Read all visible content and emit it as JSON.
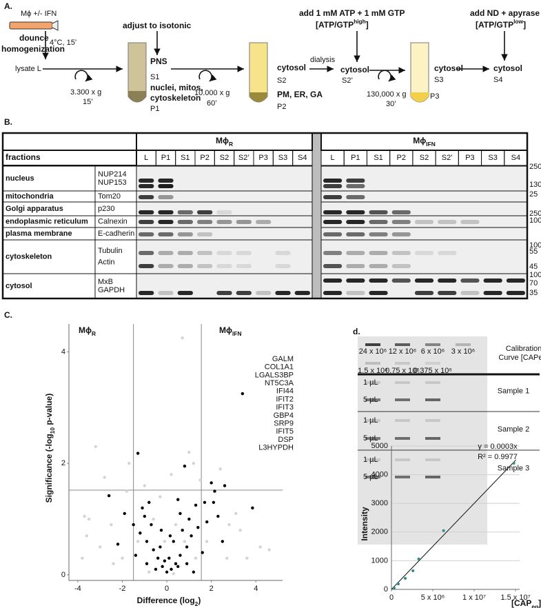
{
  "panel_a": {
    "label": "A.",
    "cells": "Mϕ  +/- IFN",
    "homogenization": [
      "dounce",
      "homogenization"
    ],
    "lysis_conditions": "4°C, 15’",
    "lysate": "lysate L",
    "step1": {
      "speed": "3.300 x g",
      "time": "15’"
    },
    "isotonic": "adjust to isotonic",
    "tube1": {
      "top_name": "PNS",
      "top": "S1",
      "bottom_name": [
        "nuclei, mitos,",
        "cytoskeleton"
      ],
      "bottom": "P1"
    },
    "step2": {
      "speed": "10.000 x g",
      "time": "60’"
    },
    "tube2": {
      "top_name": "cytosol",
      "top": "S2",
      "bottom_name": "PM, ER, GA",
      "bottom": "P2"
    },
    "atp_add": "add 1 mM ATP + 1 mM GTP",
    "atp_high": {
      "text": "[ATP/GTP",
      "sup": "high",
      "close": "]"
    },
    "dialysis": "dialysis",
    "s2p": {
      "name": "cytosol",
      "label": "S2’"
    },
    "step3": {
      "speed": "130,000 x g",
      "time": "30’"
    },
    "tube3": {
      "top_name": "cytosol",
      "top": "S3",
      "bottom": "P3"
    },
    "nd_add": "add ND + apyrase",
    "atp_low": {
      "text": "[ATP/GTP",
      "sup": "low",
      "close": "]"
    },
    "s4": {
      "name": "cytosol",
      "label": "S4"
    }
  },
  "panel_b": {
    "label": "B.",
    "header": "fractions",
    "groups": [
      {
        "name": "Mϕ",
        "sub": "R",
        "lanes": [
          "L",
          "P1",
          "S1",
          "P2",
          "S2",
          "S2’",
          "P3",
          "S3",
          "S4"
        ]
      },
      {
        "name": "Mϕ",
        "sub": "IFN",
        "lanes": [
          "L",
          "P1",
          "S1",
          "P2",
          "S2",
          "S2’",
          "P3",
          "S3",
          "S4"
        ]
      }
    ],
    "rows": [
      {
        "fraction": "nucleus",
        "markers": [
          "NUP214",
          "NUP153"
        ]
      },
      {
        "fraction": "mitochondria",
        "markers": [
          "Tom20"
        ]
      },
      {
        "fraction": "Golgi apparatus",
        "markers": [
          "p230"
        ]
      },
      {
        "fraction": "endoplasmic reticulum",
        "markers": [
          "Calnexin"
        ]
      },
      {
        "fraction": "plasma membrane",
        "markers": [
          "E-cadherin"
        ]
      },
      {
        "fraction": "cytoskeleton",
        "markers": [
          "Tubulin",
          "Actin"
        ]
      },
      {
        "fraction": "cytosol",
        "markers": [
          "MxB",
          "GAPDH"
        ]
      }
    ],
    "mw": [
      250,
      130,
      25,
      250,
      100,
      100,
      55,
      45,
      100,
      70,
      35
    ]
  },
  "gel": {
    "label": "d.",
    "standards": [
      [
        "24 x 10⁶",
        "12 x 10⁶",
        "6 x 10⁶",
        "3 x 10⁶"
      ],
      [
        "1.5 x 10⁶",
        "0.75 x 10⁶",
        "0.375 x 10⁶"
      ]
    ],
    "calibration_label": [
      "Calibration",
      "Curve [CAPeq]"
    ],
    "samples": [
      {
        "name": "Sample 1",
        "volumes": [
          "1 µL",
          "5 µL"
        ]
      },
      {
        "name": "Sample 2",
        "volumes": [
          "1 µL",
          "5 µL"
        ]
      },
      {
        "name": "Sample 3",
        "volumes": [
          "1 µL",
          "5 µL"
        ]
      }
    ]
  },
  "chart_data": [
    {
      "type": "scatter",
      "label": "C.",
      "xlabel": {
        "text": "Difference (log",
        "sub": "2",
        "close": ")"
      },
      "ylabel": {
        "text": "Significance (-log",
        "sub": "10",
        "close": " p-value)"
      },
      "xlim": [
        -4.4,
        5.2
      ],
      "ylim": [
        -0.1,
        4.5
      ],
      "xticks": [
        -4,
        -2,
        0,
        2,
        4
      ],
      "yticks": [
        0,
        2,
        4
      ],
      "cutoffs": {
        "x": [
          -1.5,
          1.55
        ],
        "y": 1.52
      },
      "group_labels": [
        {
          "name": "Mϕ",
          "sub": "R"
        },
        {
          "name": "Mϕ",
          "sub": "IFN"
        }
      ],
      "highlighted_genes": [
        "GALM",
        "COL1A1",
        "LGALS3BP",
        "NT5C3A",
        "IFI44",
        "IFIT2",
        "IFIT3",
        "GBP4",
        "SRP9",
        "IFIT5",
        "DSP",
        "L3HYPDH"
      ],
      "highlight_color": "#e8242a",
      "series": [
        {
          "color": "#d4d4d4",
          "x": [
            -3.7,
            -3.2,
            -2.8,
            -1.7,
            0.7,
            1.0,
            1.2,
            -3.6,
            -3.5,
            -3,
            -2.5,
            -2,
            -1.8,
            -1.0,
            -0.3,
            0.2,
            1.5,
            2.4,
            2.8,
            3.3,
            3.1,
            4.2,
            4.6,
            -0.6,
            0.4,
            1.8,
            -1.3,
            -2.4,
            2.7,
            -0.1,
            0.8,
            1.3,
            -0.8,
            0.3,
            -3.8,
            3.6
          ],
          "values": [
            1.05,
            2.3,
            1.75,
            2.0,
            4.25,
            2.2,
            2.0,
            0.7,
            1.0,
            0.5,
            0.9,
            0.3,
            1.5,
            1.6,
            1.4,
            1.8,
            1.7,
            1.9,
            0.9,
            0.8,
            1.1,
            0.5,
            0.45,
            1.0,
            0.9,
            0.6,
            0.6,
            0.2,
            0.3,
            0.6,
            0.6,
            0.3,
            0.05,
            0.02,
            0.3,
            0.3
          ]
        },
        {
          "color": "#000000",
          "x": [
            3.4,
            -1.3,
            0.8,
            -2.6,
            2.0,
            2.6,
            2.15,
            3.85,
            -0.8,
            0.5,
            1.3,
            1.7,
            -1.9,
            -1.5,
            -1.2,
            -0.9,
            -0.6,
            -0.4,
            -0.2,
            0,
            0.2,
            0.4,
            0.6,
            0.9,
            1.1,
            1.4,
            1.8,
            2.3,
            -0.7,
            0.3,
            -0.3,
            0.7,
            1.0,
            -1.0,
            0.1,
            -0.1,
            0.5,
            -0.5,
            1.6,
            -1.4,
            2.5,
            -2.2,
            0.9,
            -0.9,
            1.2,
            2.1,
            -1.1,
            0.6,
            0.15,
            -0.25
          ],
          "values": [
            3.25,
            2.18,
            1.95,
            1.42,
            1.65,
            1.6,
            1.5,
            1.2,
            1.3,
            1.35,
            1.25,
            1.3,
            1.1,
            0.9,
            0.75,
            0.6,
            0.45,
            0.3,
            0.15,
            0.05,
            0.1,
            0.2,
            0.35,
            0.5,
            0.7,
            0.85,
            0.95,
            1.05,
            0.9,
            0.6,
            0.5,
            0.8,
            1.0,
            1.05,
            0.3,
            0.25,
            0.15,
            0.1,
            0.4,
            0.35,
            0.6,
            0.55,
            0.2,
            0.2,
            0.05,
            1.3,
            1.2,
            1.1,
            0.7,
            0.8
          ]
        }
      ]
    },
    {
      "type": "scatter",
      "xlabel": {
        "text": "[CAP",
        "sub": "eq",
        "close": "]"
      },
      "ylabel": "Intensity",
      "xlim": [
        0,
        15500000
      ],
      "ylim": [
        0,
        5000
      ],
      "xticks": [
        0,
        {
          "value": 5000000,
          "label": "5 x 10⁶"
        },
        {
          "value": 10000000,
          "label": "1 x 10⁷"
        },
        {
          "value": 15000000,
          "label": "1.5 x 10⁷"
        }
      ],
      "yticks": [
        0,
        1000,
        2000,
        3000,
        4000,
        5000
      ],
      "grid": true,
      "color": "#2e8b8b",
      "x": [
        330000,
        830000,
        1670000,
        2600000,
        3300000,
        6300000,
        14800000
      ],
      "values": [
        48,
        190,
        385,
        650,
        1060,
        2050,
        4400
      ],
      "trendline": {
        "slope": 0.0003,
        "label": "y = 0.0003x"
      },
      "r2_label": "R² = 0.9977"
    }
  ]
}
